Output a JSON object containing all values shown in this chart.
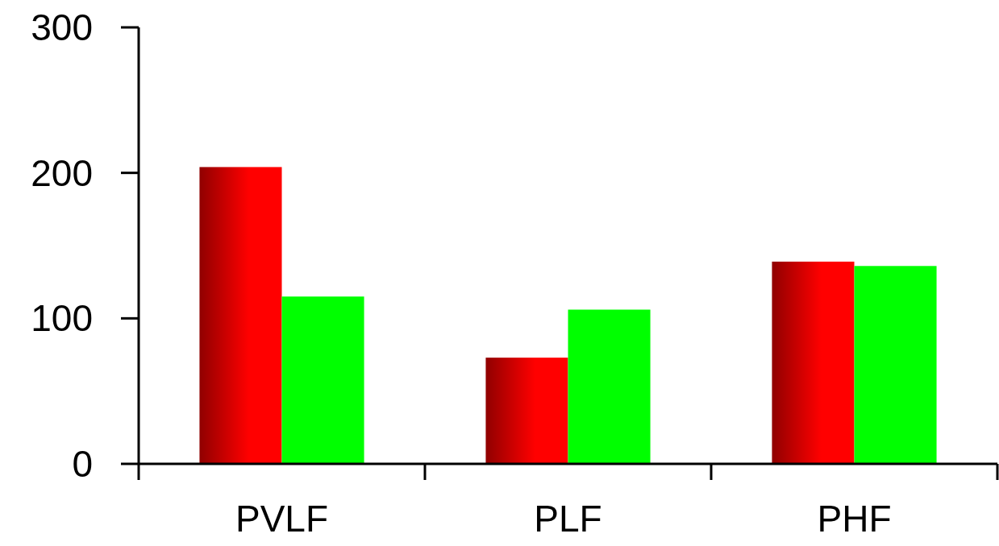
{
  "chart_data": {
    "type": "bar",
    "categories": [
      "PVLF",
      "PLF",
      "PHF"
    ],
    "series": [
      {
        "color": "#ff0000",
        "values": [
          204,
          73,
          139
        ]
      },
      {
        "color": "#00ff00",
        "values": [
          115,
          106,
          136
        ]
      }
    ],
    "ylim": [
      0,
      300
    ],
    "yticks": [
      0,
      100,
      200,
      300
    ]
  }
}
